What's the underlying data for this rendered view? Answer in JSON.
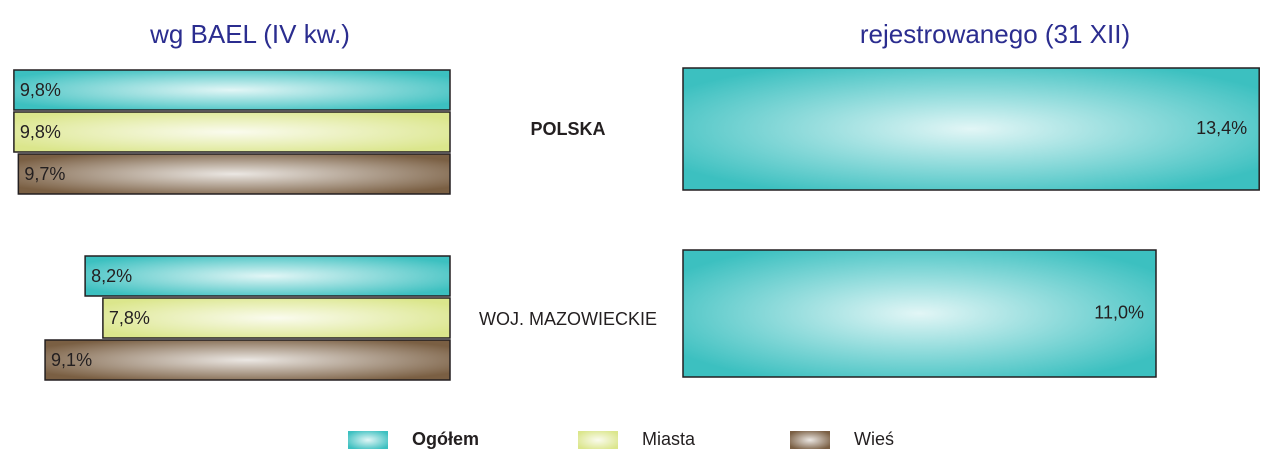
{
  "chart_data": [
    {
      "type": "bar",
      "title": "wg BAEL (IV kw.)",
      "categories": [
        "POLSKA",
        "WOJ. MAZOWIECKIE"
      ],
      "xlim": [
        0,
        10
      ],
      "series": [
        {
          "name": "Ogółem",
          "color": "#3cc0c0",
          "values": [
            9.8,
            8.2
          ],
          "value_labels": [
            "9,8%",
            "8,2%"
          ]
        },
        {
          "name": "Miasta",
          "color": "#dbe68c",
          "values": [
            9.8,
            7.8
          ],
          "value_labels": [
            "9,8%",
            "7,8%"
          ]
        },
        {
          "name": "Wieś",
          "color": "#7a5f43",
          "values": [
            9.7,
            9.1
          ],
          "value_labels": [
            "9,7%",
            "9,1%"
          ]
        }
      ]
    },
    {
      "type": "bar",
      "title": "rejestrowanego (31 XII)",
      "xlim": [
        0,
        14
      ],
      "series": [
        {
          "name": "Ogółem",
          "color": "#3cc0c0",
          "values": [
            13.4,
            11.0
          ],
          "value_labels": [
            "13,4%",
            "11,0%"
          ]
        }
      ]
    }
  ]
}
